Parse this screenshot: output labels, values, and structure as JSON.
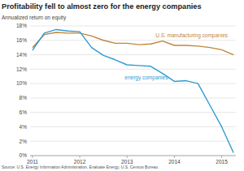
{
  "chart_data": {
    "type": "line",
    "title": "Profitability fell to almost zero for the energy companies",
    "y_label": "Annualized return on equity",
    "source": "Source: U.S. Energy Information Administration, Evaluate Energy, U.S. Census Bureau",
    "x": [
      2011,
      2011.25,
      2011.5,
      2011.75,
      2012,
      2012.25,
      2012.5,
      2012.75,
      2013,
      2013.25,
      2013.5,
      2013.75,
      2014,
      2014.25,
      2014.5,
      2014.75,
      2015,
      2015.25
    ],
    "series": [
      {
        "name": "U.S. manufacturing companies",
        "color": "#c0863a",
        "values": [
          15.0,
          16.8,
          17.1,
          17.0,
          17.0,
          16.6,
          16.0,
          15.6,
          15.6,
          15.4,
          15.5,
          15.9,
          15.3,
          15.3,
          15.2,
          15.0,
          14.7,
          14.0
        ]
      },
      {
        "name": "energy companies",
        "color": "#2f9bd3",
        "values": [
          14.6,
          17.0,
          17.5,
          17.3,
          17.2,
          15.0,
          13.9,
          13.3,
          12.6,
          12.5,
          12.4,
          11.4,
          10.3,
          10.4,
          10.0,
          7.0,
          4.0,
          0.4
        ]
      }
    ],
    "xlim": [
      2010.95,
      2015.3
    ],
    "xticks": [
      2011,
      2012,
      2013,
      2014,
      2015
    ],
    "ylim": [
      0,
      18
    ],
    "yticks": [
      {
        "value": 0,
        "label": "0%"
      },
      {
        "value": 2,
        "label": "2%"
      },
      {
        "value": 4,
        "label": "4%"
      },
      {
        "value": 6,
        "label": "6%"
      },
      {
        "value": 8,
        "label": "8%"
      },
      {
        "value": 10,
        "label": "10%"
      },
      {
        "value": 12,
        "label": "12%"
      },
      {
        "value": 14,
        "label": "14%"
      },
      {
        "value": 16,
        "label": "16%"
      },
      {
        "value": 18,
        "label": "18%"
      }
    ],
    "grid": true
  }
}
